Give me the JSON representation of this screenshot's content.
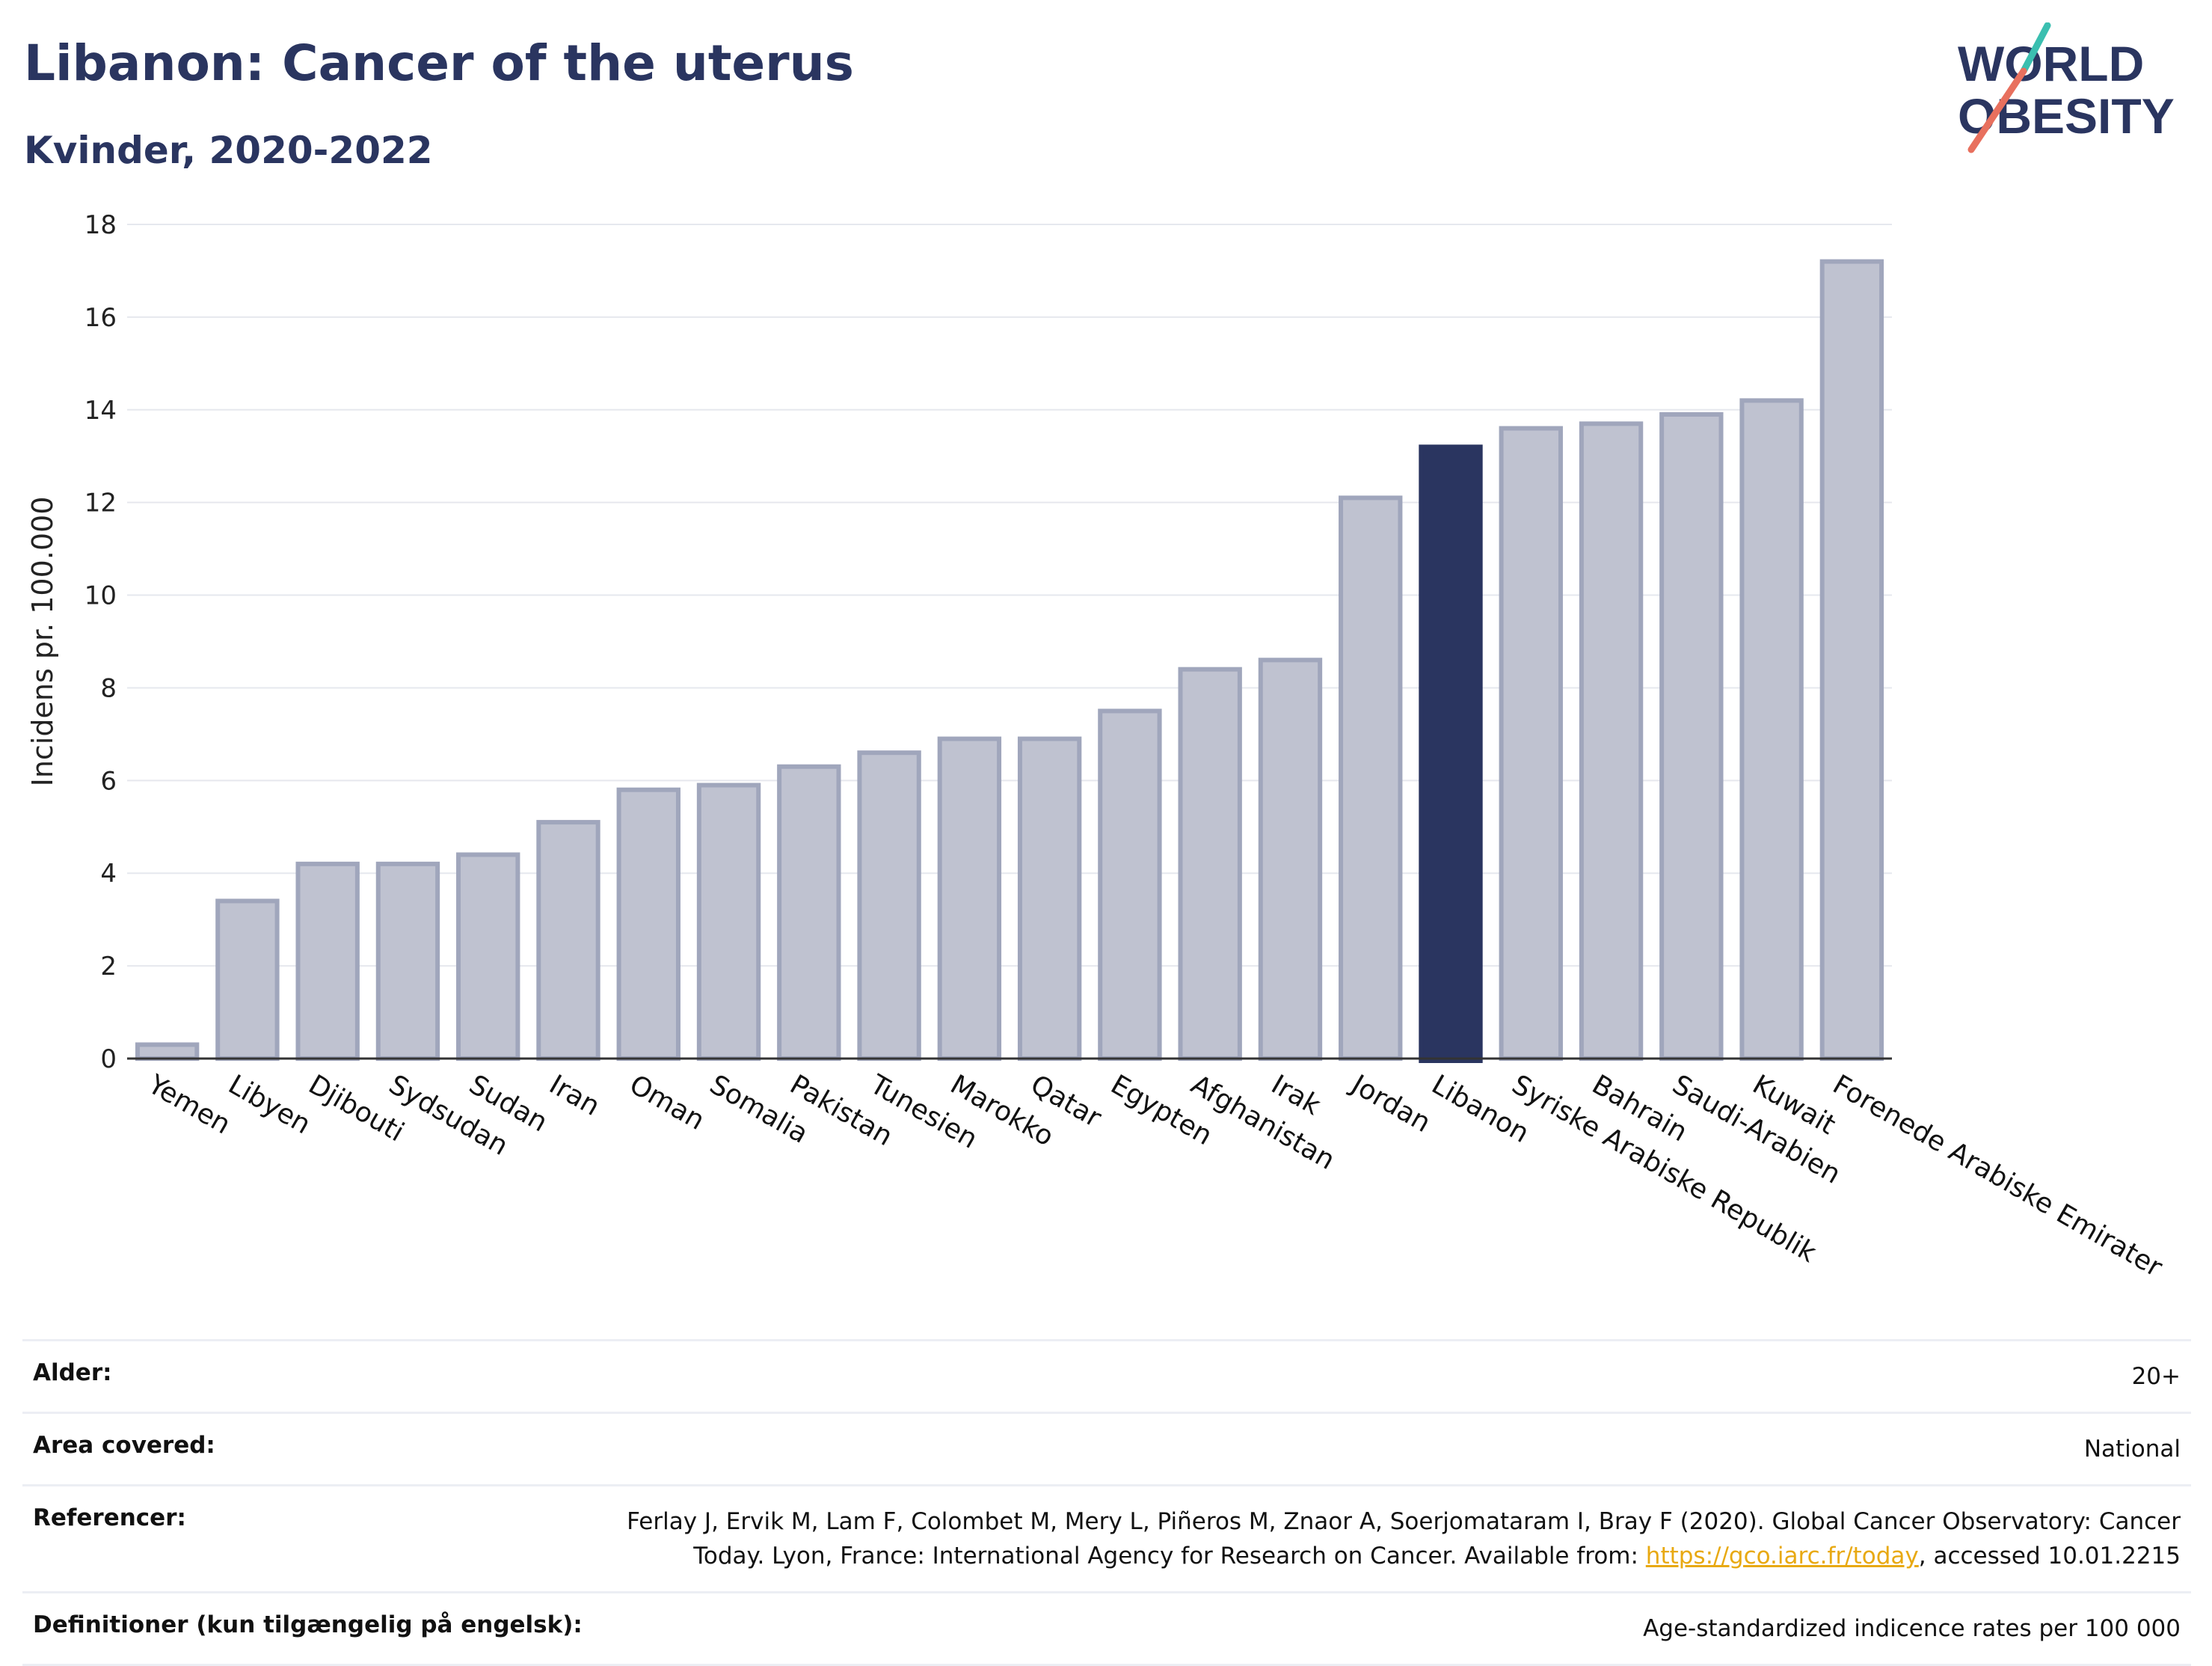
{
  "header": {
    "title": "Libanon: Cancer of the uterus",
    "subtitle": "Kvinder, 2020-2022"
  },
  "logo": {
    "line1": "WORLD",
    "line2": "OBESITY",
    "colors": {
      "text": "#2a3560",
      "slash_top": "#3bbfb0",
      "slash_bottom": "#e8705e"
    }
  },
  "chart_data": {
    "type": "bar",
    "ylabel": "Incidens pr. 100.000",
    "xlabel": "",
    "ylim": [
      0,
      18
    ],
    "yticks": [
      0,
      2,
      4,
      6,
      8,
      10,
      12,
      14,
      16,
      18
    ],
    "grid": true,
    "categories": [
      "Yemen",
      "Libyen",
      "Djibouti",
      "Sydsudan",
      "Sudan",
      "Iran",
      "Oman",
      "Somalia",
      "Pakistan",
      "Tunesien",
      "Marokko",
      "Qatar",
      "Egypten",
      "Afghanistan",
      "Irak",
      "Jordan",
      "Libanon",
      "Syriske Arabiske Republik",
      "Bahrain",
      "Saudi-Arabien",
      "Kuwait",
      "Forenede Arabiske Emirater"
    ],
    "values": [
      0.3,
      3.4,
      4.2,
      4.2,
      4.4,
      5.1,
      5.8,
      5.9,
      6.3,
      6.6,
      6.9,
      6.9,
      7.5,
      8.4,
      8.6,
      12.1,
      13.2,
      13.6,
      13.7,
      13.9,
      14.2,
      17.2
    ],
    "highlight": "Libanon",
    "colors": {
      "bar": "#bfc2d0",
      "bar_border": "#a0a6bc",
      "highlight": "#2a3560",
      "grid": "#e6e8ee",
      "axis": "#333333"
    }
  },
  "info": [
    {
      "label": "Alder:",
      "value": "20+"
    },
    {
      "label": "Area covered:",
      "value": "National"
    },
    {
      "label": "Referencer:",
      "value_parts": {
        "before": "Ferlay J, Ervik M, Lam F, Colombet M, Mery L, Piñeros M, Znaor A, Soerjomataram I, Bray F (2020). Global Cancer Observatory: Cancer Today. Lyon, France: International Agency for Research on Cancer. Available from: ",
        "link": "https://gco.iarc.fr/today",
        "after": ", accessed 10.01.2215"
      }
    },
    {
      "label": "Definitioner (kun tilgængelig på engelsk):",
      "value": "Age-standardized indicence rates per 100 000"
    }
  ]
}
